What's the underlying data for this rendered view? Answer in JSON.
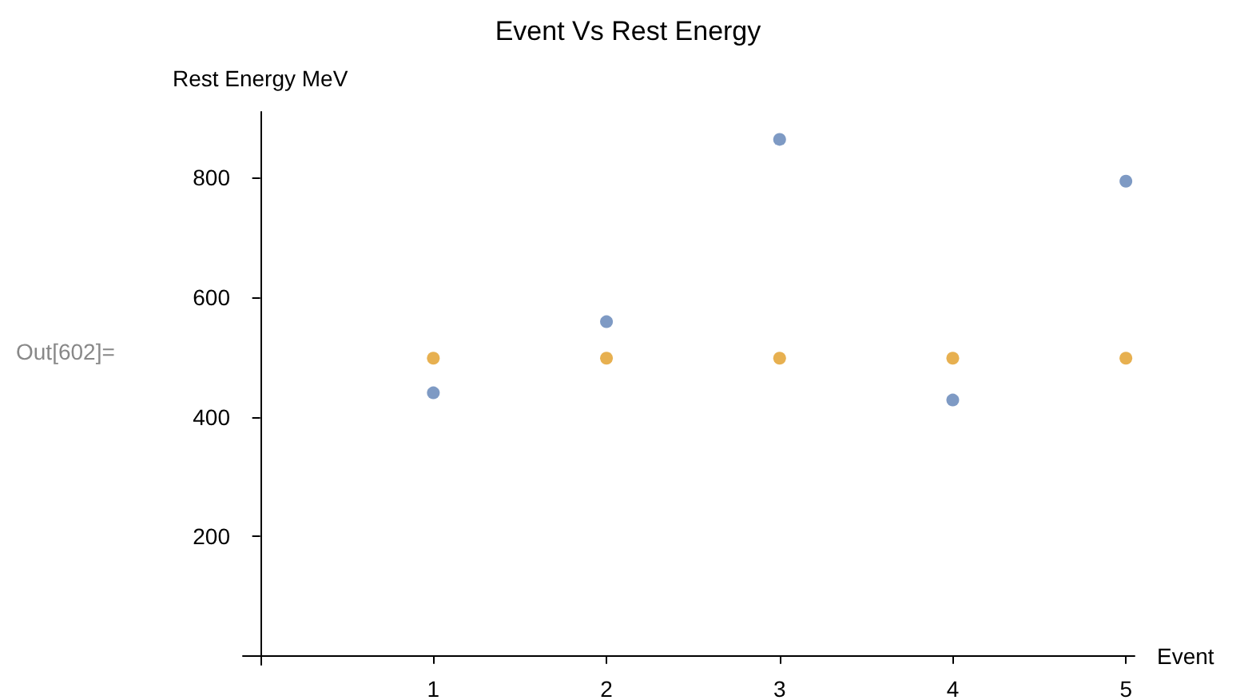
{
  "chart_data": {
    "type": "scatter",
    "title": "Event Vs Rest Energy",
    "xlabel": "Event",
    "ylabel": "Rest Energy MeV",
    "annotations": [
      "Out[602]="
    ],
    "x": [
      1,
      2,
      3,
      4,
      5
    ],
    "series": [
      {
        "color": "#5e81b5",
        "values": [
          440,
          559,
          864,
          428,
          794
        ]
      },
      {
        "color": "#e19c24",
        "values": [
          498,
          498,
          498,
          498,
          498
        ]
      }
    ],
    "xlim": [
      -0.1,
      5.05
    ],
    "xticks": [
      1,
      2,
      3,
      4,
      5
    ],
    "ylim": [
      -15,
      910
    ],
    "yticks": [
      200,
      400,
      600,
      800
    ],
    "grid": false,
    "marker": "circle"
  }
}
